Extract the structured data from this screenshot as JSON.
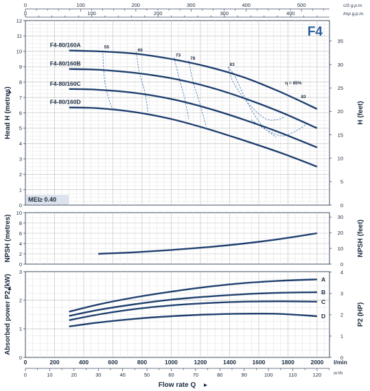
{
  "chart_data": {
    "type": "line",
    "title": "F4",
    "mei_label": "MEI≥ 0.40",
    "flow_label": "Flow rate Q",
    "top_axis_1": {
      "unit": "US g.p.m.",
      "ticks": [
        "0",
        "100",
        "200",
        "300",
        "400",
        "500"
      ],
      "tick_values": [
        0,
        100,
        200,
        300,
        400,
        500
      ],
      "lpm_per_unit": 3.78541
    },
    "top_axis_2": {
      "unit": "Imp g.p.m.",
      "ticks": [
        "0",
        "100",
        "200",
        "300",
        "400"
      ],
      "tick_values": [
        0,
        100,
        200,
        300,
        400
      ],
      "lpm_per_unit": 4.54609
    },
    "bottom_axis_1": {
      "unit": "l/min",
      "ticks": [
        "0",
        "200",
        "400",
        "600",
        "800",
        "1000",
        "1200",
        "1400",
        "1600",
        "1800",
        "2000"
      ],
      "range": [
        0,
        2000
      ]
    },
    "bottom_axis_2": {
      "unit": "m³/h",
      "ticks": [
        "0",
        "10",
        "20",
        "30",
        "40",
        "50",
        "60",
        "70",
        "80",
        "90",
        "100",
        "110",
        "120"
      ],
      "tick_values": [
        0,
        10,
        20,
        30,
        40,
        50,
        60,
        70,
        80,
        90,
        100,
        110,
        120
      ],
      "lpm_per_unit": 16.6667
    },
    "head_panel": {
      "ylabel": "Head H  (metres)",
      "y2label": "H  (feet)",
      "yticks": [
        "0",
        "1",
        "2",
        "3",
        "4",
        "5",
        "6",
        "7",
        "8",
        "9",
        "10",
        "11",
        "12"
      ],
      "ylim": [
        0,
        12
      ],
      "y2ticks": [
        "0",
        "5",
        "10",
        "15",
        "20",
        "25",
        "30",
        "35"
      ],
      "y2_tick_values": [
        0,
        5,
        10,
        15,
        20,
        25,
        30,
        35
      ],
      "feet_per_metre": 3.28084,
      "series": [
        {
          "name": "F4-80/160A",
          "x": [
            300,
            500,
            750,
            1000,
            1250,
            1500,
            1750,
            2000
          ],
          "y": [
            10.05,
            10.0,
            9.85,
            9.5,
            9.0,
            8.3,
            7.35,
            6.25
          ]
        },
        {
          "name": "F4-80/160B",
          "x": [
            300,
            500,
            750,
            1000,
            1250,
            1500,
            1750,
            2000
          ],
          "y": [
            8.85,
            8.8,
            8.6,
            8.25,
            7.7,
            6.95,
            6.05,
            5.0
          ]
        },
        {
          "name": "F4-80/160C",
          "x": [
            300,
            500,
            750,
            1000,
            1250,
            1500,
            1750,
            2000
          ],
          "y": [
            7.55,
            7.5,
            7.3,
            6.9,
            6.3,
            5.55,
            4.7,
            3.75
          ]
        },
        {
          "name": "F4-80/160D",
          "x": [
            300,
            500,
            750,
            1000,
            1250,
            1500,
            1750,
            2000
          ],
          "y": [
            6.35,
            6.3,
            6.05,
            5.6,
            4.95,
            4.2,
            3.4,
            2.5
          ]
        }
      ],
      "efficiency_labels": [
        {
          "text": "55",
          "x": 540,
          "y": 10.2
        },
        {
          "text": "66",
          "x": 770,
          "y": 10.0
        },
        {
          "text": "73",
          "x": 1030,
          "y": 9.65
        },
        {
          "text": "78",
          "x": 1130,
          "y": 9.45
        },
        {
          "text": "83",
          "x": 1400,
          "y": 9.05
        },
        {
          "text": "η = 85%",
          "x": 1780,
          "y": 7.85
        },
        {
          "text": "83",
          "x": 1890,
          "y": 6.95
        }
      ],
      "efficiency_lines": [
        {
          "x": [
            530,
            545,
            590,
            620
          ],
          "y": [
            10.05,
            8.0,
            6.4,
            6.3
          ]
        },
        {
          "x": [
            760,
            780,
            820,
            840
          ],
          "y": [
            9.95,
            8.7,
            7.3,
            6.0
          ]
        },
        {
          "x": [
            1020,
            1050,
            1090,
            1120
          ],
          "y": [
            9.6,
            8.4,
            7.0,
            5.6
          ]
        },
        {
          "x": [
            1120,
            1150,
            1190,
            1240
          ],
          "y": [
            9.4,
            8.0,
            6.8,
            5.1
          ]
        },
        {
          "x": [
            1390,
            1430,
            1530,
            1640,
            1720,
            1780
          ],
          "y": [
            9.0,
            7.9,
            6.6,
            5.65,
            5.55,
            5.75
          ]
        },
        {
          "x": [
            1390,
            1440,
            1520,
            1620,
            1720
          ],
          "y": [
            9.0,
            8.3,
            6.7,
            5.2,
            4.4
          ]
        },
        {
          "x": [
            1550,
            1650,
            1760,
            1860,
            1940
          ],
          "y": [
            5.55,
            4.9,
            4.5,
            4.85,
            5.35
          ]
        }
      ]
    },
    "npsh_panel": {
      "ylabel": "NPSH  (metres)",
      "y2label": "NPSH  (feet)",
      "yticks": [
        "0",
        "2",
        "4",
        "6",
        "8",
        "10"
      ],
      "ylim": [
        0,
        10
      ],
      "y2ticks": [
        "0",
        "10",
        "20",
        "30"
      ],
      "y2_tick_values": [
        0,
        10,
        20,
        30
      ],
      "feet_per_metre": 3.28084,
      "series": [
        {
          "x": [
            500,
            750,
            1000,
            1250,
            1500,
            1750,
            2000
          ],
          "y": [
            2.0,
            2.3,
            2.75,
            3.3,
            4.0,
            4.9,
            6.0
          ]
        }
      ]
    },
    "power_panel": {
      "ylabel": "Absorbed power  P2  (kW)",
      "y2label": "P2  (HP)",
      "yticks": [
        "0",
        "1",
        "2",
        "3"
      ],
      "ylim": [
        0,
        3
      ],
      "y2ticks": [
        "0",
        "1",
        "2",
        "3",
        "4"
      ],
      "y2_tick_values": [
        0,
        1,
        2,
        3,
        4
      ],
      "hp_per_kw": 1.34102,
      "series": [
        {
          "name": "A",
          "x": [
            300,
            500,
            750,
            1000,
            1250,
            1500,
            1750,
            2000
          ],
          "y": [
            1.6,
            1.85,
            2.1,
            2.3,
            2.47,
            2.6,
            2.68,
            2.73
          ]
        },
        {
          "name": "B",
          "x": [
            300,
            500,
            750,
            1000,
            1250,
            1500,
            1750,
            2000
          ],
          "y": [
            1.45,
            1.66,
            1.86,
            2.02,
            2.13,
            2.21,
            2.26,
            2.28
          ]
        },
        {
          "name": "C",
          "x": [
            300,
            500,
            750,
            1000,
            1250,
            1500,
            1750,
            2000
          ],
          "y": [
            1.3,
            1.5,
            1.69,
            1.82,
            1.9,
            1.95,
            1.96,
            1.95
          ]
        },
        {
          "name": "D",
          "x": [
            300,
            500,
            750,
            1000,
            1250,
            1500,
            1750,
            2000
          ],
          "y": [
            1.08,
            1.22,
            1.35,
            1.44,
            1.5,
            1.53,
            1.52,
            1.44
          ]
        }
      ]
    },
    "colors": {
      "curve": "#1f3f6e",
      "grid": "#c9c9c9",
      "frame": "#3a4a60",
      "efficiency": "#3a6fb0",
      "title": "#2e5f9e",
      "mei_box": "#dde3ec"
    }
  }
}
